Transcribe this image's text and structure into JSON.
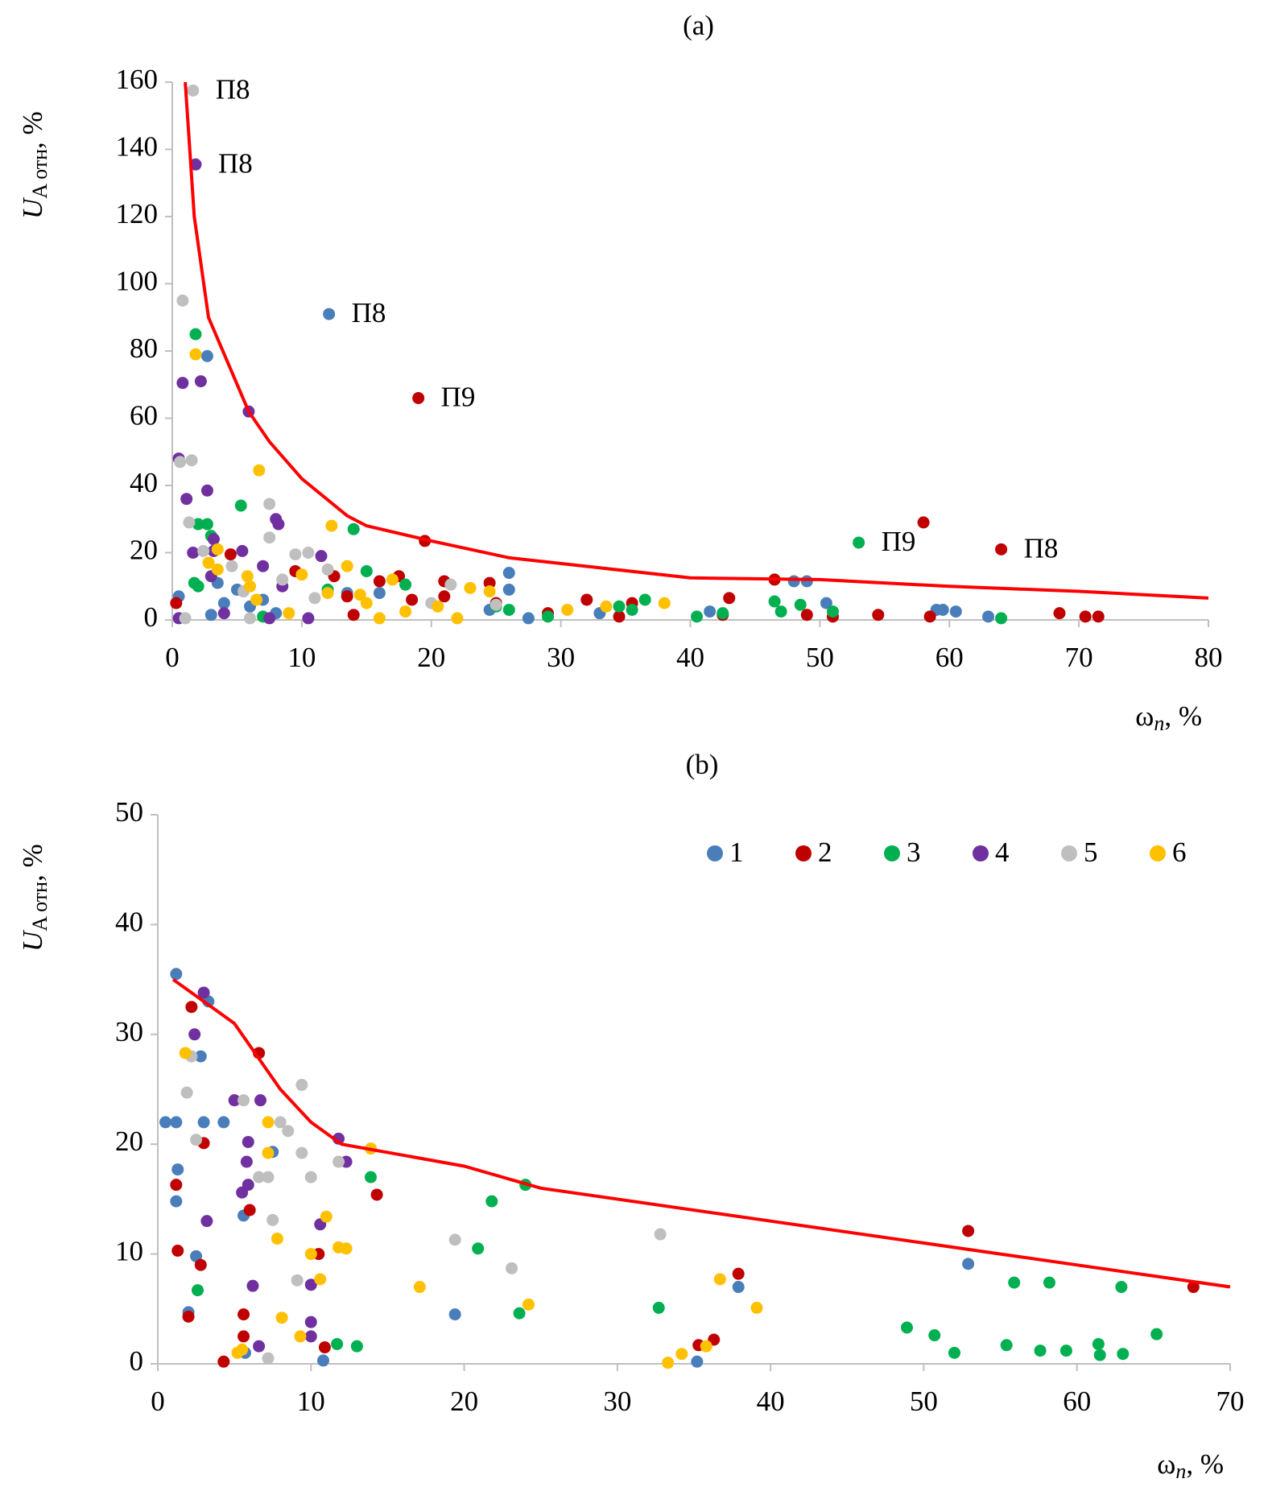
{
  "chart_data": [
    {
      "type": "scatter",
      "title": "(a)",
      "xlabel": [
        "ω",
        "n",
        ", %"
      ],
      "ylabel": [
        "U",
        "A отн",
        ", %"
      ],
      "xlim": [
        0,
        80
      ],
      "xticks": [
        0,
        10,
        20,
        30,
        40,
        50,
        60,
        70,
        80
      ],
      "ylim": [
        0,
        160
      ],
      "yticks": [
        0,
        20,
        40,
        60,
        80,
        100,
        120,
        140,
        160
      ],
      "series": [
        {
          "color": "#4a7ebb",
          "x": [
            12.1,
            2.7,
            0.5,
            3.5,
            4,
            5,
            7,
            8,
            13.5,
            16,
            24.5,
            25,
            26,
            26,
            27.5,
            33,
            41.5,
            48,
            49,
            50.5,
            59,
            59.5,
            60.5,
            63,
            3,
            6
          ],
          "values": [
            91,
            78.5,
            7,
            11,
            5,
            9,
            6,
            2,
            8,
            8,
            3,
            5,
            9,
            14,
            0.5,
            2,
            2.5,
            11.5,
            11.5,
            5,
            3,
            3,
            2.5,
            1,
            1.5,
            4
          ]
        },
        {
          "color": "#c00000",
          "x": [
            19,
            64,
            58,
            19.5,
            0.3,
            4.5,
            9.5,
            12.5,
            13.5,
            16,
            17.5,
            18.5,
            21,
            21,
            24.5,
            25,
            29,
            32,
            34.5,
            35.5,
            42.5,
            43,
            46.5,
            49,
            51,
            54.5,
            58.5,
            68.5,
            70.5,
            71.5,
            14
          ],
          "values": [
            66,
            21,
            29,
            23.5,
            5,
            19.5,
            14.5,
            13,
            7,
            11.5,
            13,
            6,
            11.5,
            7,
            11,
            5,
            2,
            6,
            1,
            5,
            1.5,
            6.5,
            12,
            1.5,
            1,
            1.5,
            1,
            2,
            1,
            1,
            1.5
          ]
        },
        {
          "color": "#00b050",
          "x": [
            53,
            14,
            1.8,
            5.3,
            2,
            2.7,
            3,
            1.7,
            2,
            15,
            18,
            25,
            26,
            29,
            34.5,
            35.5,
            36.5,
            40.5,
            42.5,
            46.5,
            47,
            48.5,
            51,
            64,
            7,
            12
          ],
          "values": [
            23,
            27,
            85,
            34,
            28.5,
            28.5,
            25,
            11,
            10,
            14.5,
            10.5,
            4,
            3,
            1,
            4,
            3,
            6,
            1,
            2,
            5.5,
            2.5,
            4.5,
            2.5,
            0.5,
            1,
            9
          ]
        },
        {
          "color": "#7030a0",
          "x": [
            1.8,
            5.9,
            0.8,
            2.2,
            0.5,
            1.1,
            2.7,
            8,
            8.2,
            1.6,
            3,
            3.2,
            5.4,
            7,
            11.5,
            4,
            0.5,
            7.5,
            10.5,
            8.5,
            3.2
          ],
          "values": [
            135.5,
            62,
            70.5,
            71,
            48,
            36,
            38.5,
            30,
            28.5,
            20,
            13,
            24,
            20.5,
            16,
            19,
            2,
            0.5,
            0.5,
            0.5,
            10,
            20.5
          ]
        },
        {
          "color": "#bfbfbf",
          "x": [
            1.6,
            0.8,
            7.5,
            0.6,
            1.5,
            1.3,
            2.4,
            4.6,
            5.5,
            7.5,
            9.5,
            10.5,
            11,
            12,
            8.5,
            20,
            21.5,
            25,
            1,
            6
          ],
          "values": [
            157.5,
            95,
            34.5,
            47,
            47.5,
            29,
            20.5,
            16,
            8.5,
            24.5,
            19.5,
            20,
            6.5,
            15,
            12,
            5,
            10.5,
            4.5,
            0.5,
            0.5
          ]
        },
        {
          "color": "#ffc000",
          "x": [
            6.7,
            12.3,
            1.8,
            3.5,
            3.5,
            2.8,
            5.8,
            6,
            6.5,
            10,
            12,
            13.5,
            14.5,
            15,
            16,
            17,
            18,
            20.5,
            22,
            23,
            24.5,
            30.5,
            33.5,
            38,
            9
          ],
          "values": [
            44.5,
            28,
            79,
            21,
            15,
            17,
            13,
            10,
            6,
            13.5,
            8,
            16,
            7.5,
            5,
            0.5,
            12,
            2.5,
            4,
            0.5,
            9.5,
            8.5,
            3,
            4,
            5,
            2
          ]
        },
        {
          "type": "line",
          "color": "#ff0000",
          "x": [
            1,
            1.7,
            2.8,
            5.9,
            7.5,
            10,
            13.5,
            15,
            20,
            26,
            33,
            40,
            50,
            60,
            70,
            80
          ],
          "values": [
            160,
            120,
            90,
            62,
            53,
            42,
            31,
            28,
            23.5,
            18.5,
            15.5,
            12.5,
            12,
            10,
            8.5,
            6.5
          ]
        }
      ],
      "annotations": [
        {
          "text": "П8",
          "x": 1.6,
          "y": 157.5
        },
        {
          "text": "П8",
          "x": 1.8,
          "y": 135.5
        },
        {
          "text": "П8",
          "x": 12.1,
          "y": 91
        },
        {
          "text": "П9",
          "x": 19,
          "y": 66
        },
        {
          "text": "П9",
          "x": 53,
          "y": 23
        },
        {
          "text": "П8",
          "x": 64,
          "y": 21
        }
      ]
    },
    {
      "type": "scatter",
      "title": "(b)",
      "xlabel": [
        "ω",
        "n",
        ", %"
      ],
      "ylabel": [
        "U",
        "A отн",
        ", %"
      ],
      "xlim": [
        0,
        70
      ],
      "xticks": [
        0,
        10,
        20,
        30,
        40,
        50,
        60,
        70
      ],
      "ylim": [
        0,
        50
      ],
      "yticks": [
        0,
        10,
        20,
        30,
        40,
        50
      ],
      "legend": "top-right",
      "series": [
        {
          "name": "1",
          "color": "#4a7ebb",
          "x": [
            1.2,
            0.5,
            1.2,
            3,
            4.3,
            1.3,
            1.2,
            2.8,
            3.3,
            7.5,
            5.6,
            2.5,
            2,
            19.4,
            5.7,
            10.8,
            35.2,
            37.9,
            52.9
          ],
          "values": [
            35.5,
            22,
            22,
            22,
            22,
            17.7,
            14.8,
            28,
            33,
            19.3,
            13.5,
            9.8,
            4.7,
            4.5,
            1,
            0.3,
            0.2,
            7,
            9.1
          ]
        },
        {
          "name": "2",
          "color": "#c00000",
          "x": [
            3,
            10.5,
            14.3,
            36.3,
            67.6,
            1.2,
            1.3,
            2,
            2.8,
            5.6,
            5.6,
            6,
            10.9,
            4.3,
            35.3,
            37.9,
            52.9,
            2.2,
            6.6
          ],
          "values": [
            20.1,
            10,
            15.4,
            2.2,
            7,
            16.3,
            10.3,
            4.3,
            9,
            4.5,
            2.5,
            14,
            1.5,
            0.2,
            1.7,
            8.2,
            12.1,
            32.5,
            28.3
          ]
        },
        {
          "name": "3",
          "color": "#00b050",
          "x": [
            13.9,
            21.8,
            24,
            20.9,
            55.9,
            58.2,
            62.9,
            2.6,
            23.6,
            32.7,
            11.7,
            13,
            48.9,
            50.7,
            52,
            55.4,
            57.6,
            59.3,
            61.4,
            61.5,
            63,
            65.2
          ],
          "values": [
            17,
            14.8,
            16.3,
            10.5,
            7.4,
            7.4,
            7,
            6.7,
            4.6,
            5.1,
            1.8,
            1.6,
            3.3,
            2.6,
            1,
            1.7,
            1.2,
            1.2,
            1.8,
            0.8,
            0.9,
            2.7
          ]
        },
        {
          "name": "4",
          "color": "#7030a0",
          "x": [
            3,
            2.4,
            5,
            6.7,
            11.8,
            12.3,
            3.2,
            5.9,
            5.9,
            5.8,
            6.2,
            10,
            10,
            10,
            10.6,
            6.6,
            5.5
          ],
          "values": [
            33.8,
            30,
            24,
            24,
            20.5,
            18.4,
            13,
            16.3,
            20.2,
            18.4,
            7.1,
            3.8,
            2.5,
            7.2,
            12.7,
            1.6,
            15.6
          ]
        },
        {
          "name": "5",
          "color": "#bfbfbf",
          "x": [
            2.2,
            5.6,
            8,
            9.4,
            7.5,
            23.1,
            32.8,
            1.9,
            2.5,
            6.6,
            7.2,
            8.5,
            9.4,
            10,
            11.8,
            19.4,
            9.1,
            7.2
          ],
          "values": [
            28,
            24,
            22,
            19.2,
            13.1,
            8.7,
            11.8,
            24.7,
            20.4,
            17,
            17,
            21.2,
            25.4,
            17,
            18.4,
            11.3,
            7.6,
            0.5
          ]
        },
        {
          "name": "6",
          "color": "#ffc000",
          "x": [
            7.2,
            7.2,
            13.9,
            7.8,
            24.2,
            36.7,
            1.8,
            10,
            10.6,
            11,
            11.8,
            12.3,
            8.1,
            9.3,
            17.1,
            39.1,
            33.3,
            34.2,
            35.8,
            5.2,
            5.5
          ],
          "values": [
            19.2,
            22,
            19.6,
            11.4,
            5.4,
            7.7,
            28.3,
            10,
            7.7,
            13.4,
            10.6,
            10.5,
            4.2,
            2.5,
            7,
            5.1,
            0.1,
            0.9,
            1.6,
            1,
            1.3
          ]
        },
        {
          "type": "line",
          "color": "#ff0000",
          "x": [
            1,
            3,
            4,
            5,
            8,
            10,
            12,
            20,
            25,
            40,
            55,
            70
          ],
          "values": [
            35,
            33,
            32,
            31,
            25,
            22,
            20,
            18,
            16,
            13,
            10,
            7
          ]
        }
      ]
    }
  ]
}
